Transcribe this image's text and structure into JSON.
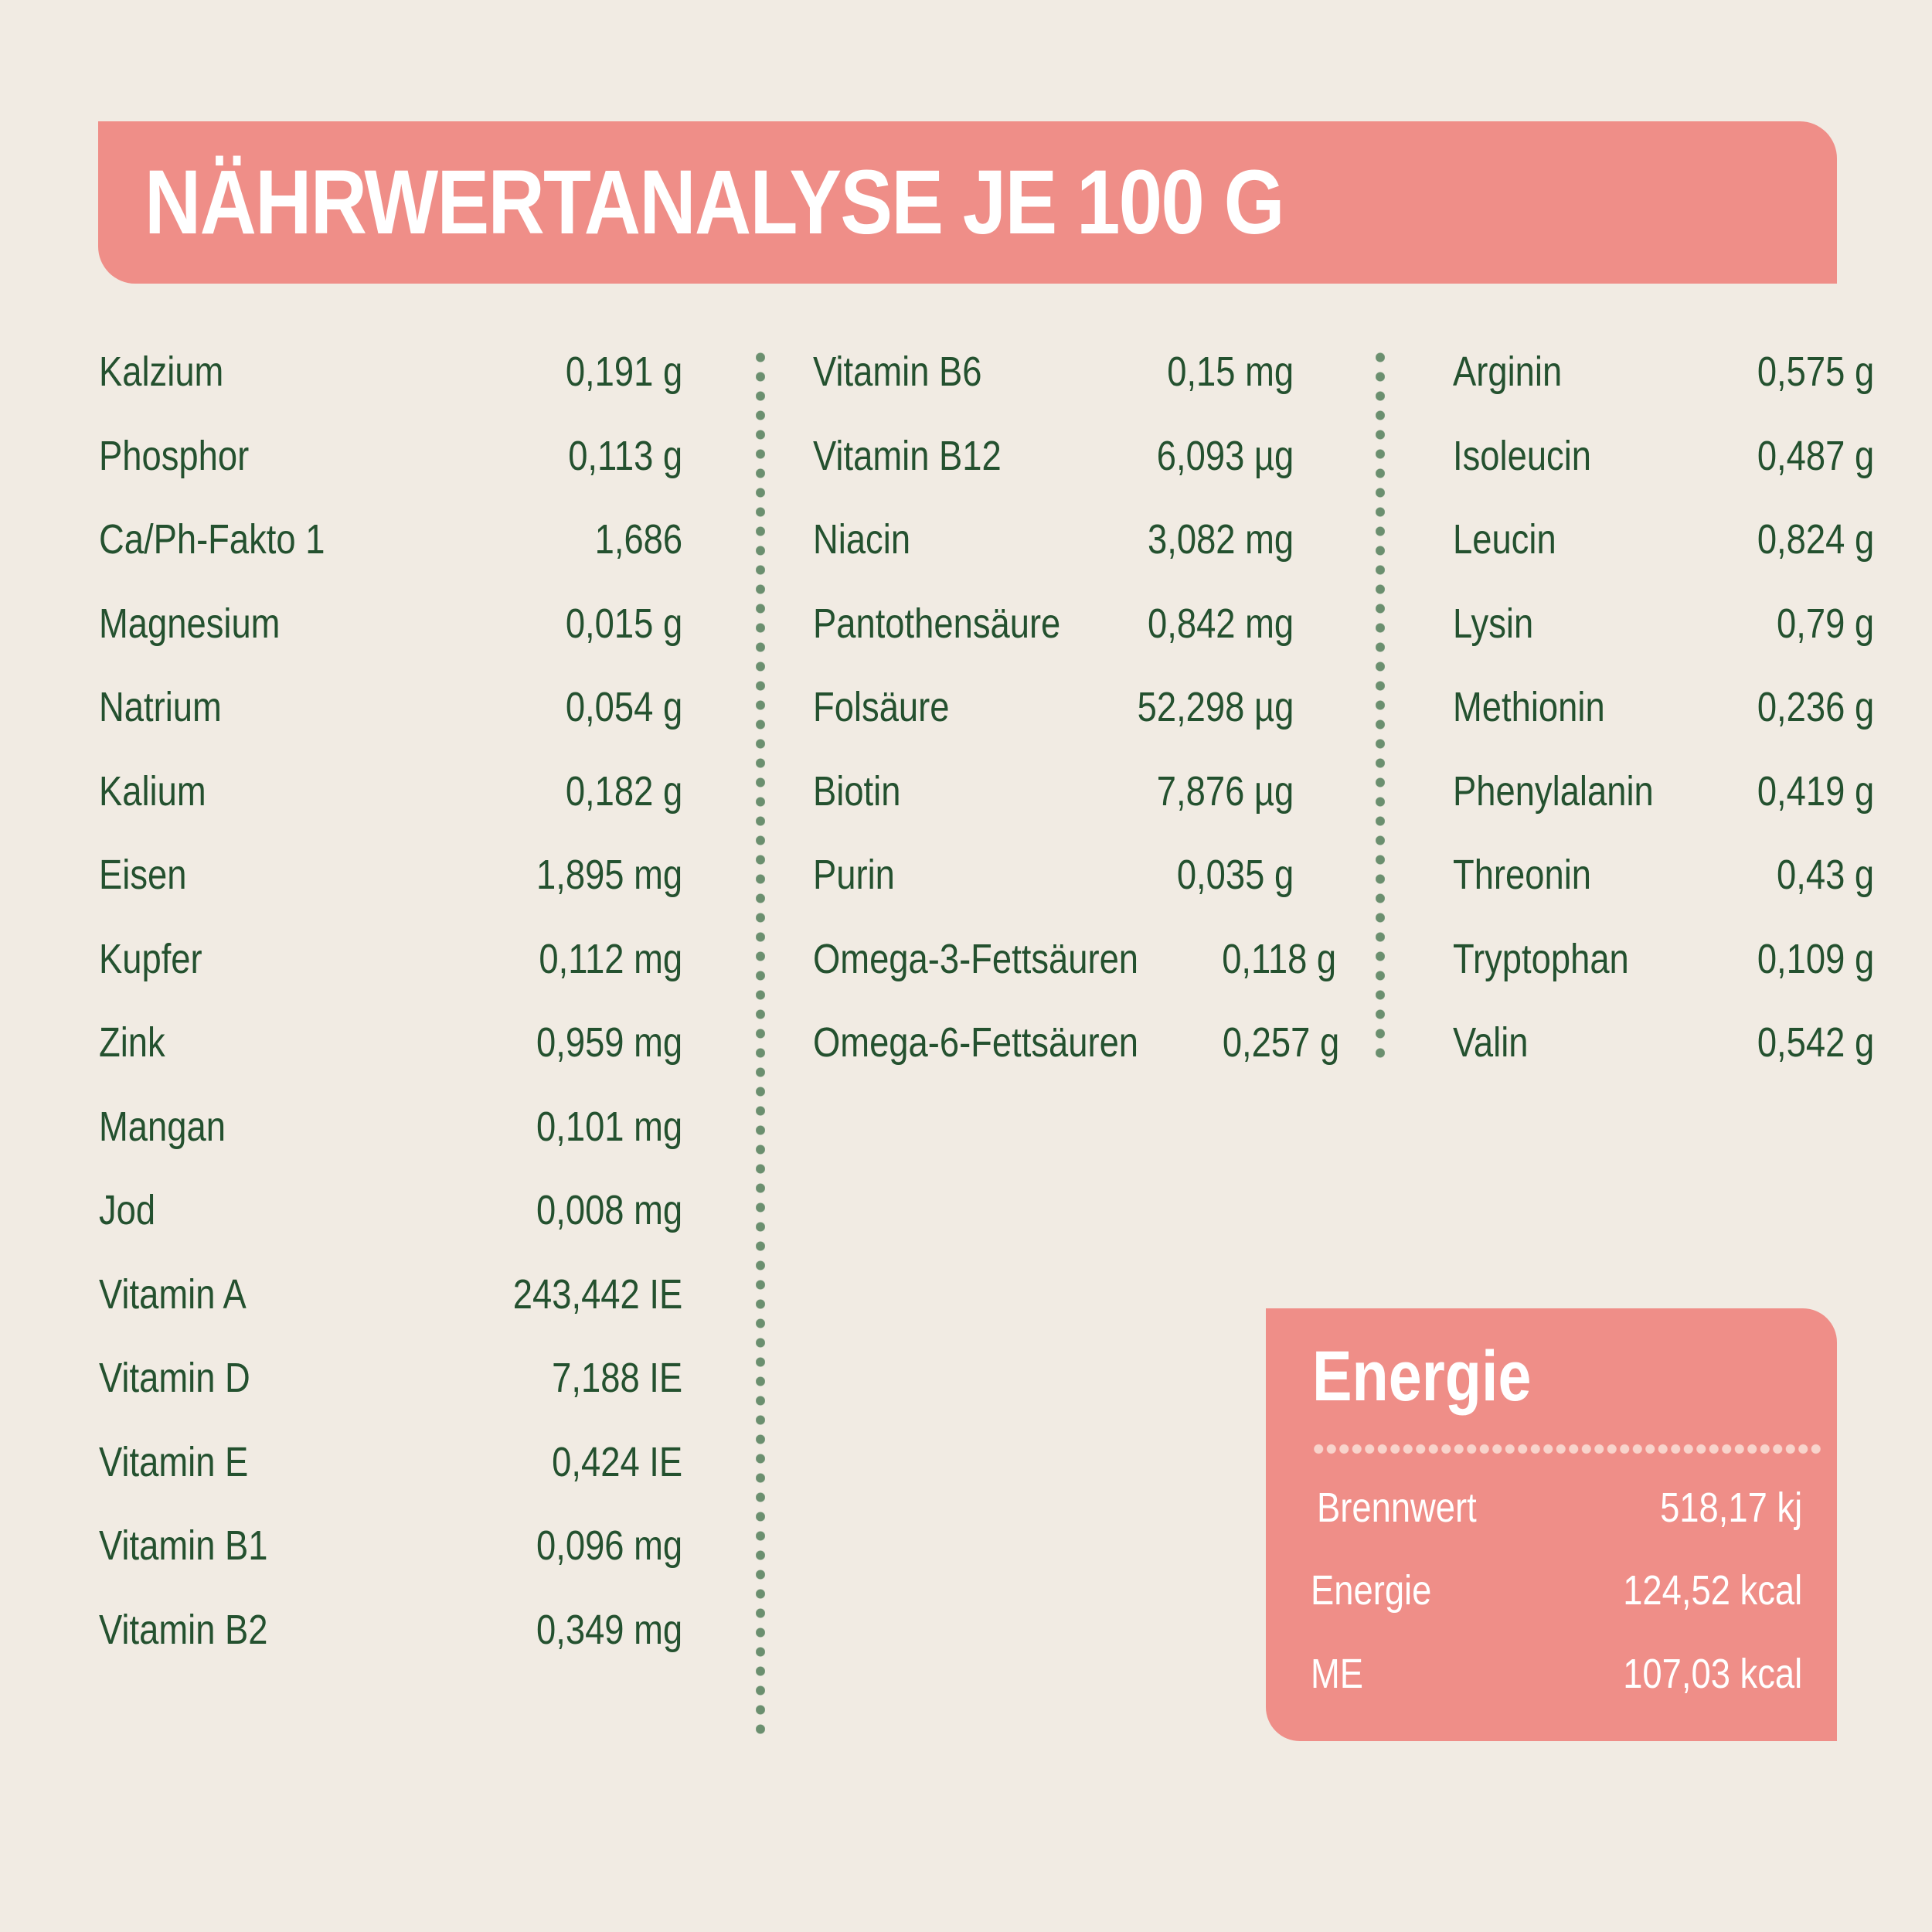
{
  "title": "NÄHRWERTANALYSE JE 100 G",
  "colors": {
    "background": "#f1ebe3",
    "accent_pink": "#ef8e88",
    "text_green": "#24512f",
    "dot_green": "#6b8f6f"
  },
  "columns": [
    {
      "items": [
        {
          "label": "Kalzium",
          "value": "0,191 g"
        },
        {
          "label": "Phosphor",
          "value": "0,113 g"
        },
        {
          "label": "Ca/Ph-Fakto 1",
          "value": "1,686"
        },
        {
          "label": "Magnesium",
          "value": "0,015 g"
        },
        {
          "label": "Natrium",
          "value": "0,054 g"
        },
        {
          "label": "Kalium",
          "value": "0,182 g"
        },
        {
          "label": "Eisen",
          "value": "1,895 mg"
        },
        {
          "label": "Kupfer",
          "value": "0,112 mg"
        },
        {
          "label": "Zink",
          "value": "0,959 mg"
        },
        {
          "label": "Mangan",
          "value": "0,101 mg"
        },
        {
          "label": "Jod",
          "value": "0,008 mg"
        },
        {
          "label": "Vitamin A",
          "value": "243,442 IE"
        },
        {
          "label": "Vitamin D",
          "value": "7,188 IE"
        },
        {
          "label": "Vitamin E",
          "value": "0,424 IE"
        },
        {
          "label": "Vitamin B1",
          "value": "0,096 mg"
        },
        {
          "label": "Vitamin B2",
          "value": "0,349 mg"
        }
      ]
    },
    {
      "items": [
        {
          "label": "Vitamin B6",
          "value": "0,15 mg"
        },
        {
          "label": "Vitamin B12",
          "value": "6,093 µg"
        },
        {
          "label": "Niacin",
          "value": "3,082 mg"
        },
        {
          "label": "Pantothensäure",
          "value": "0,842 mg"
        },
        {
          "label": "Folsäure",
          "value": "52,298 µg"
        },
        {
          "label": "Biotin",
          "value": "7,876 µg"
        },
        {
          "label": "Purin",
          "value": "0,035 g"
        },
        {
          "label": "Omega-3-Fettsäuren",
          "value": "0,118 g"
        },
        {
          "label": "Omega-6-Fettsäuren",
          "value": "0,257 g"
        }
      ]
    },
    {
      "items": [
        {
          "label": "Arginin",
          "value": "0,575 g"
        },
        {
          "label": "Isoleucin",
          "value": "0,487 g"
        },
        {
          "label": "Leucin",
          "value": "0,824 g"
        },
        {
          "label": "Lysin",
          "value": "0,79 g"
        },
        {
          "label": "Methionin",
          "value": "0,236 g"
        },
        {
          "label": "Phenylalanin",
          "value": "0,419 g"
        },
        {
          "label": "Threonin",
          "value": "0,43 g"
        },
        {
          "label": "Tryptophan",
          "value": "0,109 g"
        },
        {
          "label": "Valin",
          "value": "0,542 g"
        }
      ]
    }
  ],
  "energy": {
    "title": "Energie",
    "rows": [
      {
        "label": "Brennwert",
        "value": "518,17 kj"
      },
      {
        "label": "Energie",
        "value": "124,52 kcal"
      },
      {
        "label": "ME",
        "value": "107,03 kcal"
      }
    ]
  }
}
